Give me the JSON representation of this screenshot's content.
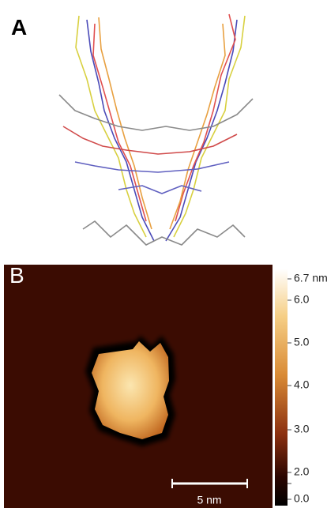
{
  "panel_a": {
    "label": "A"
  },
  "panel_b": {
    "label": "B",
    "colorbar": {
      "labels": [
        "6.7 nm",
        "6.0",
        "5.0",
        "4.0",
        "3.0",
        "2.0",
        "0.0"
      ]
    },
    "scale_bar": "5 nm"
  }
}
